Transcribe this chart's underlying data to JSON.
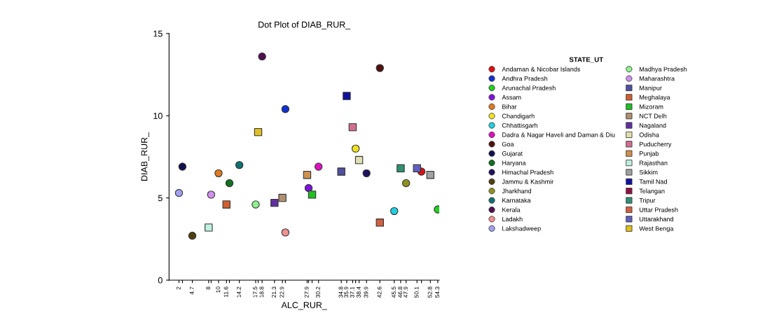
{
  "chart_data": {
    "type": "scatter",
    "title": "Dot Plot of DIAB_RUR_",
    "xlabel": "ALC_RUR_",
    "ylabel": "DIAB_RUR_",
    "legend_title": "STATE_UT",
    "legend": "right",
    "grid": false,
    "xlim": [
      0,
      54.6
    ],
    "ylim": [
      0,
      15
    ],
    "yticks": [
      0,
      5,
      10,
      15
    ],
    "xticks": [
      2,
      {
        "value": 2.7,
        "label": null
      },
      4.7,
      8,
      {
        "value": 8.5,
        "label": null
      },
      10,
      11.6,
      {
        "value": 12.2,
        "label": null
      },
      14.2,
      17.5,
      {
        "value": 18.0,
        "label": null
      },
      18.8,
      21.3,
      22.9,
      {
        "value": 23.5,
        "label": null
      },
      27.9,
      {
        "value": 28.2,
        "label": null
      },
      {
        "value": 28.9,
        "label": null
      },
      30.2,
      34.8,
      35.9,
      37.1,
      {
        "value": 37.7,
        "label": null
      },
      38.4,
      39.9,
      42.6,
      45.5,
      46.8,
      47.9,
      50.1,
      {
        "value": 51.0,
        "label": null
      },
      52.8,
      54.3
    ],
    "series": [
      {
        "name": "Andaman & Nicobar Islands",
        "color": "#e01010",
        "marker": "circle",
        "x": [
          51.0
        ],
        "values": [
          6.6
        ]
      },
      {
        "name": "Andhra Pradesh",
        "color": "#1030d0",
        "marker": "circle",
        "x": [
          23.5
        ],
        "values": [
          10.4
        ]
      },
      {
        "name": "Arunachal Pradesh",
        "color": "#20d020",
        "marker": "circle",
        "x": [
          54.3
        ],
        "values": [
          4.3
        ]
      },
      {
        "name": "Assam",
        "color": "#8010e0",
        "marker": "circle",
        "x": [
          28.2
        ],
        "values": [
          5.6
        ]
      },
      {
        "name": "Bihar",
        "color": "#e07a20",
        "marker": "circle",
        "x": [
          10.0
        ],
        "values": [
          6.5
        ]
      },
      {
        "name": "Chandigarh",
        "color": "#f0e020",
        "marker": "circle",
        "x": [
          37.7
        ],
        "values": [
          8.0
        ]
      },
      {
        "name": "Chhattisgarh",
        "color": "#20d0e0",
        "marker": "circle",
        "x": [
          45.5
        ],
        "values": [
          4.2
        ]
      },
      {
        "name": "Dadra & Nagar Haveli and Daman & Diu",
        "color": "#e010c0",
        "marker": "circle",
        "x": [
          30.2
        ],
        "values": [
          6.9
        ]
      },
      {
        "name": "Goa",
        "color": "#501010",
        "marker": "circle",
        "x": [
          42.6
        ],
        "values": [
          12.9
        ]
      },
      {
        "name": "Gujarat",
        "color": "#101050",
        "marker": "circle",
        "x": [
          2.7
        ],
        "values": [
          6.9
        ]
      },
      {
        "name": "Haryana",
        "color": "#107020",
        "marker": "circle",
        "x": [
          12.2
        ],
        "values": [
          5.9
        ]
      },
      {
        "name": "Himachal Pradesh",
        "color": "#201060",
        "marker": "circle",
        "x": [
          39.9
        ],
        "values": [
          6.5
        ]
      },
      {
        "name": "Jammu & Kashmir",
        "color": "#504010",
        "marker": "circle",
        "x": [
          4.7
        ],
        "values": [
          2.7
        ]
      },
      {
        "name": "Jharkhand",
        "color": "#909020",
        "marker": "circle",
        "x": [
          47.9
        ],
        "values": [
          5.9
        ]
      },
      {
        "name": "Karnataka",
        "color": "#107070",
        "marker": "circle",
        "x": [
          14.2
        ],
        "values": [
          7.0
        ]
      },
      {
        "name": "Kerala",
        "color": "#501050",
        "marker": "circle",
        "x": [
          18.8
        ],
        "values": [
          13.6
        ]
      },
      {
        "name": "Ladakh",
        "color": "#f09090",
        "marker": "circle",
        "x": [
          23.5
        ],
        "values": [
          2.9
        ]
      },
      {
        "name": "Lakshadweep",
        "color": "#a0a0f0",
        "marker": "circle",
        "x": [
          2.0
        ],
        "values": [
          5.3
        ]
      },
      {
        "name": "Madhya Pradesh",
        "color": "#90f090",
        "marker": "circle",
        "x": [
          17.5
        ],
        "values": [
          4.6
        ]
      },
      {
        "name": "Maharashtra",
        "color": "#d090f0",
        "marker": "circle",
        "x": [
          8.5
        ],
        "values": [
          5.2
        ]
      },
      {
        "name": "Manipur",
        "color": "#5050a0",
        "marker": "square",
        "x": [
          34.8
        ],
        "values": [
          6.6
        ]
      },
      {
        "name": "Meghalaya",
        "color": "#d06030",
        "marker": "square",
        "x": [
          11.6
        ],
        "values": [
          4.6
        ]
      },
      {
        "name": "Mizoram",
        "color": "#20c020",
        "marker": "square",
        "x": [
          28.9
        ],
        "values": [
          5.2
        ]
      },
      {
        "name": "NCT Delh",
        "color": "#b09070",
        "marker": "square",
        "x": [
          22.9
        ],
        "values": [
          5.0
        ]
      },
      {
        "name": "Nagaland",
        "color": "#6030a0",
        "marker": "square",
        "x": [
          21.3
        ],
        "values": [
          4.7
        ]
      },
      {
        "name": "Odisha",
        "color": "#e0e0b0",
        "marker": "square",
        "x": [
          38.4
        ],
        "values": [
          7.3
        ]
      },
      {
        "name": "Puducherry",
        "color": "#d07090",
        "marker": "square",
        "x": [
          37.1
        ],
        "values": [
          9.3
        ]
      },
      {
        "name": "Punjab",
        "color": "#d09050",
        "marker": "square",
        "x": [
          27.9
        ],
        "values": [
          6.4
        ]
      },
      {
        "name": "Rajasthan",
        "color": "#c0f0e0",
        "marker": "square",
        "x": [
          8.0
        ],
        "values": [
          3.2
        ]
      },
      {
        "name": "Sikkim",
        "color": "#a0a0a0",
        "marker": "square",
        "x": [
          52.8
        ],
        "values": [
          6.4
        ]
      },
      {
        "name": "Tamil Nad",
        "color": "#1010a0",
        "marker": "square",
        "x": [
          35.9
        ],
        "values": [
          11.2
        ]
      },
      {
        "name": "Telangan",
        "color": "#901040",
        "marker": "square",
        "x": [
          null
        ],
        "values": [
          null
        ]
      },
      {
        "name": "Tripur",
        "color": "#309070",
        "marker": "square",
        "x": [
          46.8
        ],
        "values": [
          6.8
        ]
      },
      {
        "name": "Uttar Pradesh",
        "color": "#d06040",
        "marker": "square",
        "x": [
          42.6
        ],
        "values": [
          3.5
        ]
      },
      {
        "name": "Uttarakhand",
        "color": "#6060c0",
        "marker": "square",
        "x": [
          50.1
        ],
        "values": [
          6.8
        ]
      },
      {
        "name": "West Benga",
        "color": "#e0c020",
        "marker": "square",
        "x": [
          18.0
        ],
        "values": [
          9.0
        ]
      }
    ]
  }
}
